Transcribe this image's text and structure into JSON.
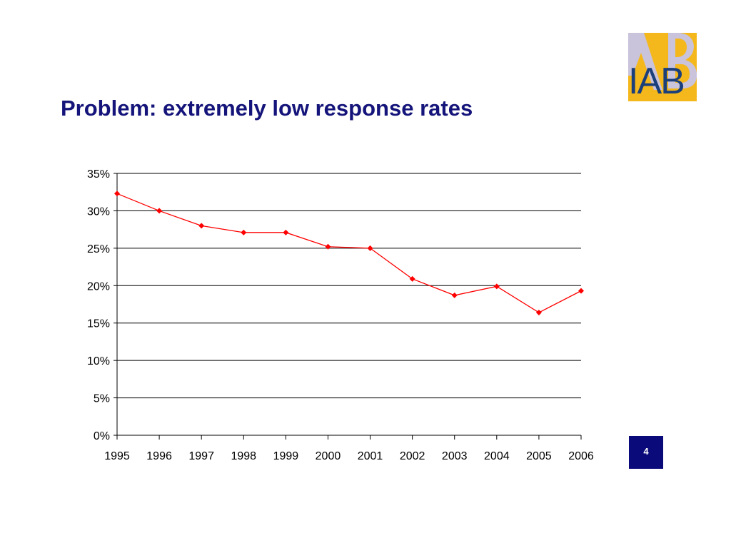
{
  "slide": {
    "title": "Problem: extremely low response rates",
    "page_number": "4",
    "logo_text": "IAB"
  },
  "colors": {
    "title": "#14147a",
    "series": "#ff0000",
    "page_badge": "#0a0a7a",
    "logo_bg": "#f5b81c",
    "logo_text": "#1b3f7a"
  },
  "chart_data": {
    "type": "line",
    "title": "",
    "xlabel": "",
    "ylabel": "",
    "categories": [
      "1995",
      "1996",
      "1997",
      "1998",
      "1999",
      "2000",
      "2001",
      "2002",
      "2003",
      "2004",
      "2005",
      "2006"
    ],
    "values": [
      32.3,
      30.0,
      28.0,
      27.1,
      27.1,
      25.2,
      25.0,
      20.9,
      18.7,
      19.9,
      16.4,
      19.3
    ],
    "unit": "%",
    "ylim": [
      0,
      35
    ],
    "yticks": [
      "0%",
      "5%",
      "10%",
      "15%",
      "20%",
      "25%",
      "30%",
      "35%"
    ],
    "grid": true,
    "marker": "diamond",
    "legend": "none"
  }
}
